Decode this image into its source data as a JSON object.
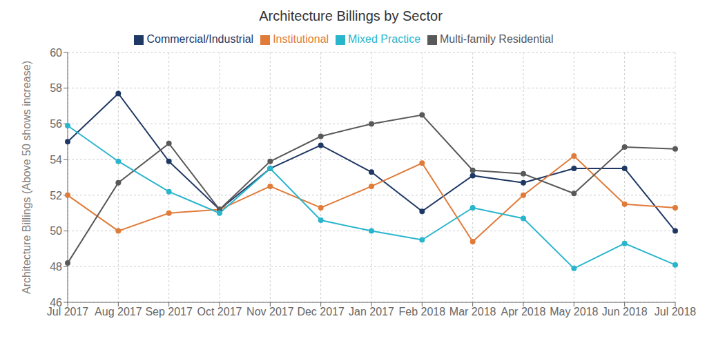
{
  "chart_data": {
    "type": "line",
    "title": "Architecture Billings by Sector",
    "y_label": "Architecture Billings (Above 50 shows increase)",
    "categories": [
      "Jul 2017",
      "Aug 2017",
      "Sep 2017",
      "Oct 2017",
      "Nov 2017",
      "Dec 2017",
      "Jan 2017",
      "Feb 2018",
      "Mar 2018",
      "Apr 2018",
      "May 2018",
      "Jun 2018",
      "Jul 2018"
    ],
    "series": [
      {
        "name": "Commercial/Industrial",
        "color": "#1f3864",
        "marker": "circle",
        "values": [
          55.0,
          57.7,
          53.9,
          51.2,
          53.5,
          54.8,
          53.3,
          51.1,
          53.1,
          52.7,
          53.5,
          53.5,
          50.0
        ]
      },
      {
        "name": "Institutional",
        "color": "#e07b39",
        "marker": "circle",
        "values": [
          52.0,
          50.0,
          51.0,
          51.2,
          52.5,
          51.3,
          52.5,
          53.8,
          49.4,
          52.0,
          54.2,
          51.5,
          51.3
        ]
      },
      {
        "name": "Multi-family Residential",
        "color": "#595959",
        "marker": "circle",
        "values": [
          48.2,
          52.7,
          54.9,
          51.2,
          53.9,
          55.3,
          56.0,
          56.5,
          53.4,
          53.2,
          52.1,
          54.7,
          54.6
        ]
      },
      {
        "name": "Mixed Practice",
        "color": "#29b5cc",
        "marker": "circle",
        "values": [
          55.9,
          53.9,
          52.2,
          51.0,
          53.5,
          50.6,
          50.0,
          49.5,
          51.3,
          50.7,
          47.9,
          49.3,
          48.1
        ]
      }
    ],
    "ylim": [
      46,
      60
    ],
    "yticks": [
      46,
      48,
      50,
      52,
      54,
      56,
      58,
      60
    ],
    "grid": true,
    "legend": "top"
  }
}
